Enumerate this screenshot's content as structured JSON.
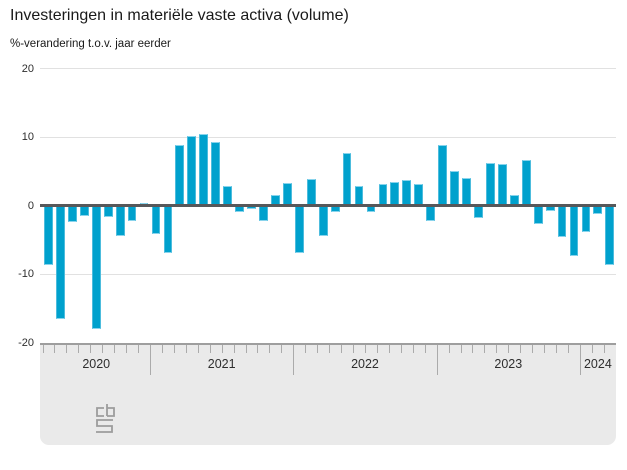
{
  "header": {
    "title": "Investeringen in materiële vaste activa (volume)",
    "subtitle": "%-verandering t.o.v. jaar eerder"
  },
  "chart_data": {
    "type": "bar",
    "title": "Investeringen in materiële vaste activa (volume)",
    "ylabel": "%-verandering t.o.v. jaar eerder",
    "ylim": [
      -20,
      20
    ],
    "grid": "horizontal",
    "legend": "none",
    "bar_color": "#00a1cd",
    "zero_line_color": "#57585a",
    "ytick_labels": [
      "20",
      "10",
      "0",
      "-10",
      "-20"
    ],
    "yticks": [
      20,
      10,
      0,
      -10,
      -20
    ],
    "x_year_labels": [
      "2020",
      "2021",
      "2022",
      "2023",
      "2024"
    ],
    "months": [
      "2020-04",
      "2020-05",
      "2020-06",
      "2020-07",
      "2020-08",
      "2020-09",
      "2020-10",
      "2020-11",
      "2020-12",
      "2021-01",
      "2021-02",
      "2021-03",
      "2021-04",
      "2021-05",
      "2021-06",
      "2021-07",
      "2021-08",
      "2021-09",
      "2021-10",
      "2021-11",
      "2021-12",
      "2022-01",
      "2022-02",
      "2022-03",
      "2022-04",
      "2022-05",
      "2022-06",
      "2022-07",
      "2022-08",
      "2022-09",
      "2022-10",
      "2022-11",
      "2022-12",
      "2023-01",
      "2023-02",
      "2023-03",
      "2023-04",
      "2023-05",
      "2023-06",
      "2023-07",
      "2023-08",
      "2023-09",
      "2023-10",
      "2023-11",
      "2023-12",
      "2024-01",
      "2024-02",
      "2024-03"
    ],
    "values": [
      -8.7,
      -16.6,
      -2.4,
      -1.5,
      -18.0,
      -1.7,
      -4.5,
      -2.2,
      0.4,
      -4.2,
      -7.0,
      8.8,
      10.2,
      10.5,
      9.2,
      2.8,
      -1.0,
      -0.5,
      -2.3,
      1.6,
      3.3,
      -7.0,
      3.9,
      -4.5,
      -0.9,
      7.6,
      2.9,
      -1.0,
      3.2,
      3.5,
      3.7,
      3.2,
      -2.3,
      8.9,
      5.0,
      4.0,
      -1.8,
      6.2,
      6.0,
      1.6,
      6.6,
      -2.7,
      -0.8,
      -4.6,
      -7.3,
      -3.9,
      -1.3,
      -8.7
    ]
  },
  "footer": {
    "logo_name": "CBS"
  }
}
